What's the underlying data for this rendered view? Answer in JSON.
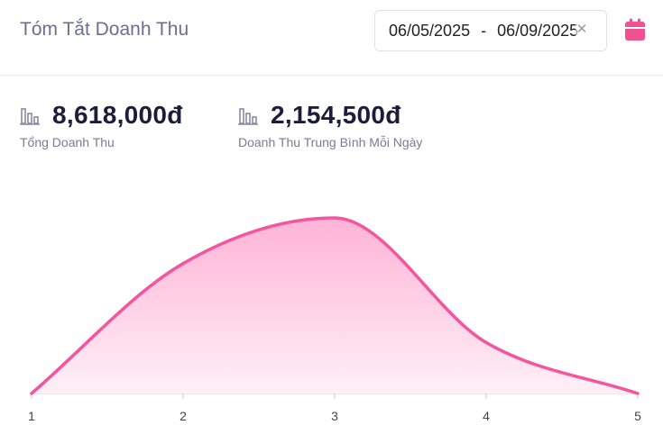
{
  "header": {
    "title": "Tóm Tắt Doanh Thu",
    "date_start": "06/05/2025",
    "date_separator": "-",
    "date_end": "06/09/2025",
    "clear_icon": "close-icon",
    "calendar_icon": "calendar-icon",
    "accent_color": "#f05192"
  },
  "stats": [
    {
      "icon": "bar-chart-icon",
      "value": "8,618,000đ",
      "label": "Tổng Doanh Thu"
    },
    {
      "icon": "bar-chart-icon",
      "value": "2,154,500đ",
      "label": "Doanh Thu Trung Bình Mỗi Ngày"
    }
  ],
  "chart_data": {
    "type": "area",
    "x": [
      1,
      2,
      3,
      4,
      5
    ],
    "tick_labels": [
      "1",
      "2",
      "3",
      "4",
      "5"
    ],
    "series": [
      {
        "values": [
          0,
          0.74,
          1.0,
          0.29,
          0
        ]
      }
    ],
    "line_color": "#f4559c",
    "fill_color_top": "#ffb3d6",
    "fill_color_bottom": "#fff0f6"
  }
}
